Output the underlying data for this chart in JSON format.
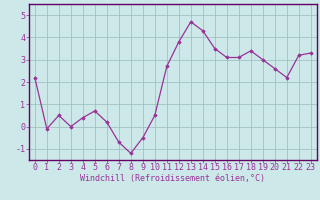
{
  "x": [
    0,
    1,
    2,
    3,
    4,
    5,
    6,
    7,
    8,
    9,
    10,
    11,
    12,
    13,
    14,
    15,
    16,
    17,
    18,
    19,
    20,
    21,
    22,
    23
  ],
  "y": [
    2.2,
    -0.1,
    0.5,
    0.0,
    0.4,
    0.7,
    0.2,
    -0.7,
    -1.2,
    -0.5,
    0.5,
    2.7,
    3.8,
    4.7,
    4.3,
    3.5,
    3.1,
    3.1,
    3.4,
    3.0,
    2.6,
    2.2,
    3.2,
    3.3
  ],
  "ylim": [
    -1.5,
    5.5
  ],
  "xlim": [
    -0.5,
    23.5
  ],
  "yticks": [
    -1,
    0,
    1,
    2,
    3,
    4,
    5
  ],
  "xticks": [
    0,
    1,
    2,
    3,
    4,
    5,
    6,
    7,
    8,
    9,
    10,
    11,
    12,
    13,
    14,
    15,
    16,
    17,
    18,
    19,
    20,
    21,
    22,
    23
  ],
  "line_color": "#993399",
  "marker": "D",
  "marker_size": 1.8,
  "bg_color": "#cce8e8",
  "plot_bg_color": "#cce8e8",
  "grid_color": "#99bbbb",
  "axis_bar_color": "#660066",
  "xlabel": "Windchill (Refroidissement éolien,°C)",
  "xlabel_fontsize": 6.0,
  "tick_fontsize": 6.0,
  "line_width": 0.9
}
